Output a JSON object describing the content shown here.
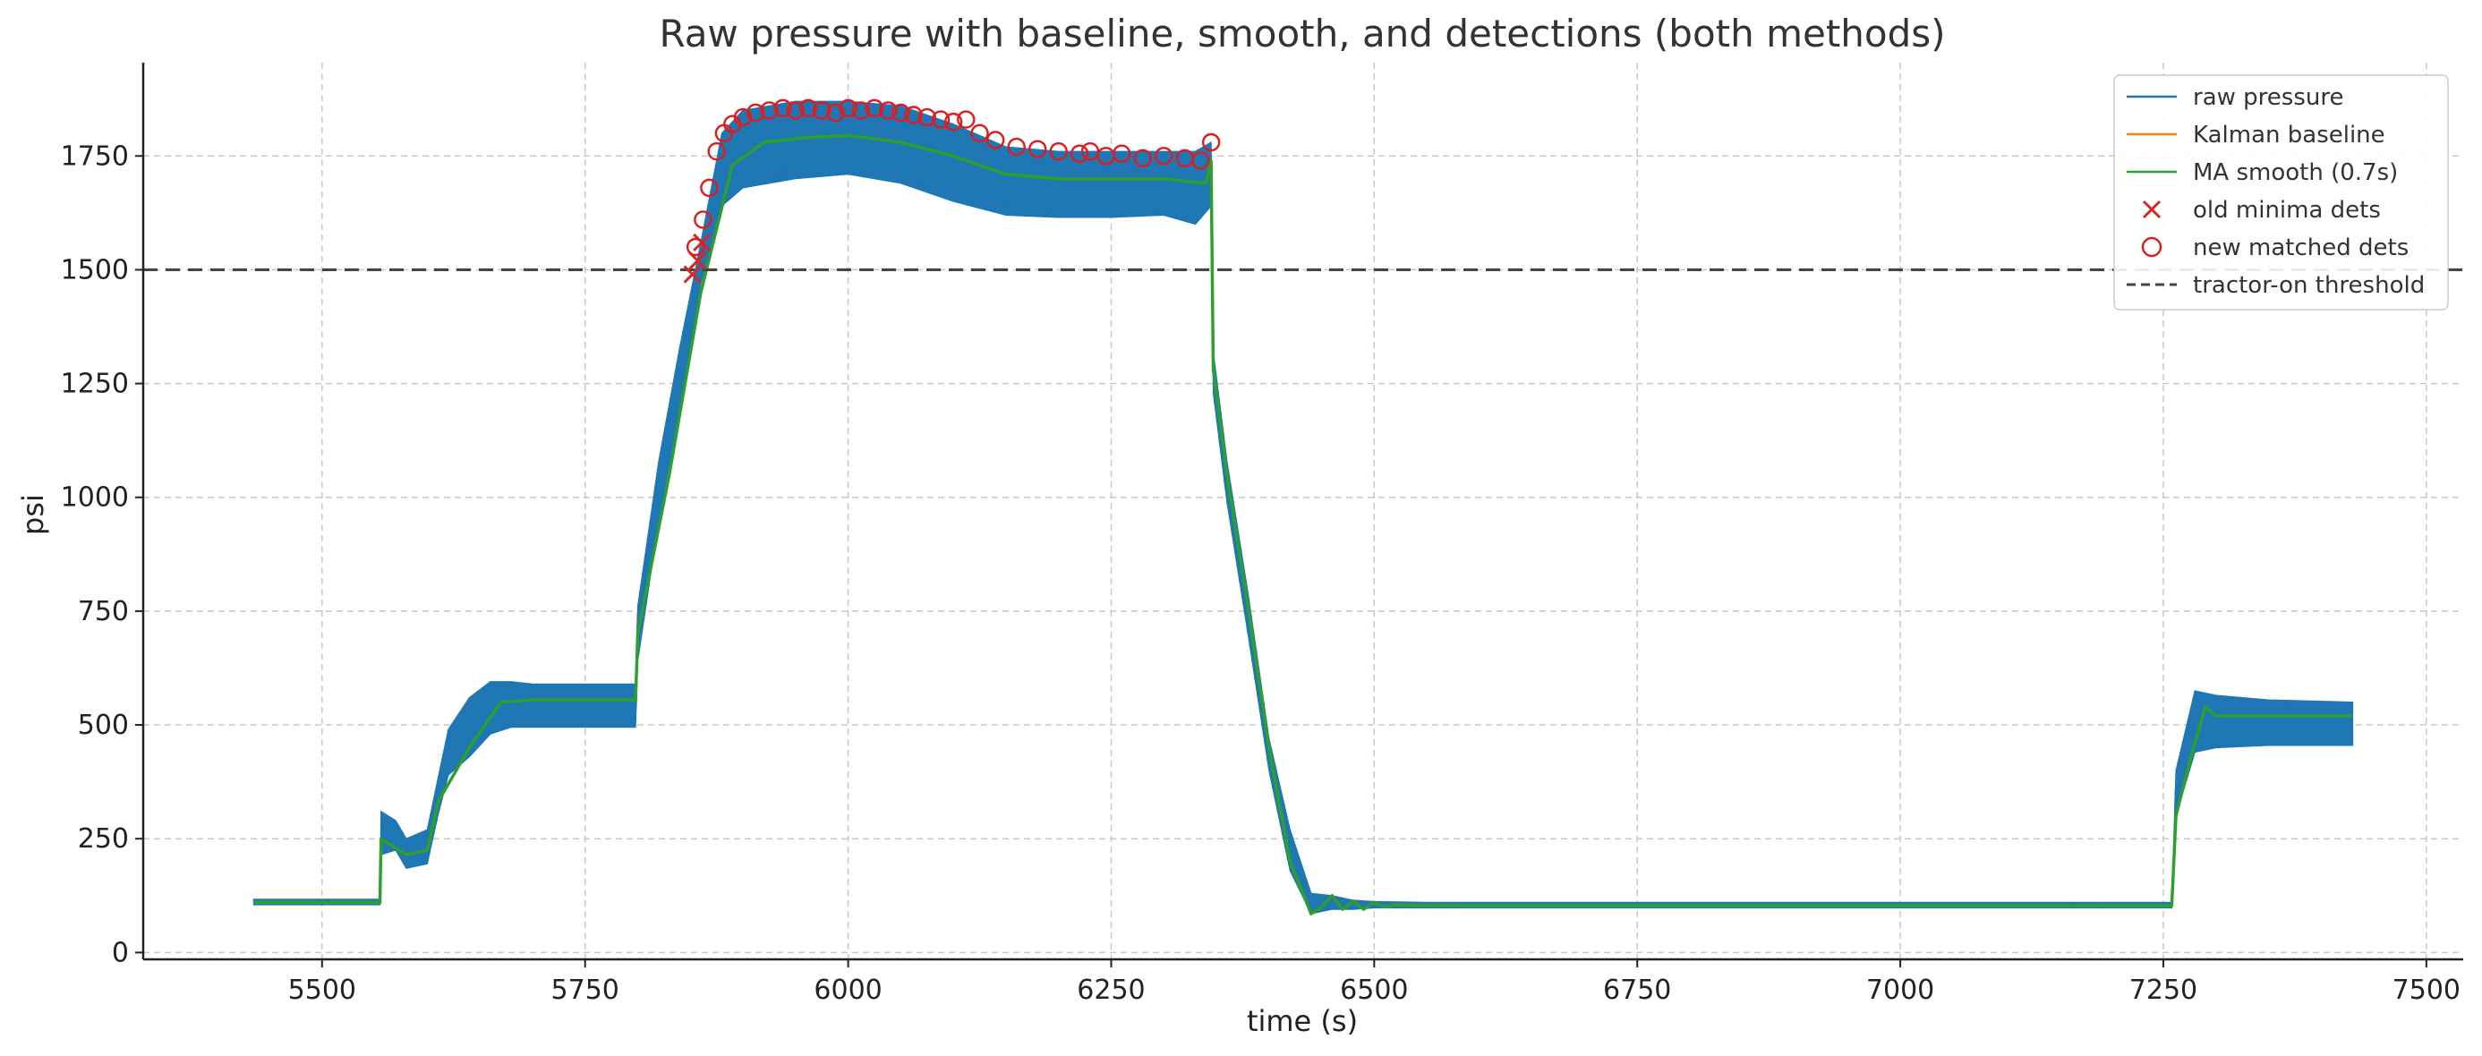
{
  "chart_data": {
    "type": "line",
    "title": "Raw pressure with baseline, smooth, and detections (both methods)",
    "xlabel": "time (s)",
    "ylabel": "psi",
    "xlim": [
      5330,
      7535
    ],
    "ylim": [
      -15,
      1955
    ],
    "x_ticks": [
      5500,
      5750,
      6000,
      6250,
      6500,
      6750,
      7000,
      7250,
      7500
    ],
    "y_ticks": [
      0,
      250,
      500,
      750,
      1000,
      1250,
      1500,
      1750
    ],
    "grid": true,
    "legend_position": "top-right",
    "colors": {
      "raw": "#1f77b4",
      "kalman": "#ff7f0e",
      "ma": "#2ca02c",
      "old_dets": "#d62728",
      "new_dets": "#e31a1c",
      "threshold": "#444444"
    },
    "series": [
      {
        "name": "raw pressure",
        "kind": "band",
        "x": [
          5435,
          5555,
          5556,
          5570,
          5580,
          5600,
          5610,
          5620,
          5640,
          5660,
          5680,
          5700,
          5750,
          5798,
          5800,
          5820,
          5840,
          5860,
          5880,
          5900,
          5950,
          6000,
          6050,
          6100,
          6150,
          6200,
          6250,
          6300,
          6330,
          6345,
          6347,
          6360,
          6380,
          6400,
          6420,
          6440,
          6460,
          6480,
          6500,
          6550,
          6600,
          7000,
          7258,
          7262,
          7280,
          7300,
          7350,
          7430
        ],
        "lower": [
          105,
          105,
          215,
          225,
          185,
          195,
          300,
          390,
          430,
          480,
          495,
          495,
          495,
          495,
          640,
          950,
          1200,
          1470,
          1640,
          1680,
          1700,
          1710,
          1690,
          1650,
          1620,
          1615,
          1615,
          1620,
          1600,
          1640,
          1230,
          990,
          700,
          400,
          180,
          85,
          95,
          95,
          98,
          98,
          98,
          98,
          98,
          300,
          440,
          450,
          455,
          455
        ],
        "upper": [
          117,
          117,
          310,
          290,
          250,
          270,
          380,
          490,
          560,
          595,
          595,
          590,
          590,
          590,
          760,
          1080,
          1330,
          1560,
          1800,
          1850,
          1870,
          1870,
          1860,
          1820,
          1770,
          1760,
          1760,
          1760,
          1760,
          1780,
          1320,
          1080,
          790,
          470,
          270,
          130,
          125,
          115,
          112,
          110,
          110,
          110,
          110,
          400,
          575,
          565,
          555,
          550
        ]
      },
      {
        "name": "Kalman baseline",
        "kind": "line",
        "x": [
          5435,
          5555,
          5556,
          5580,
          5600,
          5610,
          5640,
          5670,
          5700,
          5798,
          5800,
          5830,
          5860,
          5890,
          5920,
          5960,
          6000,
          6050,
          6100,
          6150,
          6200,
          6250,
          6300,
          6340,
          6345,
          6347,
          6360,
          6380,
          6400,
          6420,
          6440,
          6450,
          6460,
          6470,
          6480,
          6490,
          6500,
          6510,
          6520,
          6540,
          6560,
          6580,
          6600,
          7258,
          7262,
          7275,
          7290,
          7300,
          7350,
          7430
        ],
        "y": [
          110,
          110,
          250,
          215,
          225,
          330,
          450,
          550,
          555,
          555,
          700,
          1050,
          1450,
          1730,
          1780,
          1790,
          1795,
          1780,
          1750,
          1710,
          1700,
          1700,
          1700,
          1690,
          1740,
          1280,
          1050,
          760,
          450,
          200,
          85,
          100,
          125,
          95,
          112,
          95,
          110,
          100,
          105,
          103,
          104,
          103,
          103,
          103,
          300,
          420,
          540,
          520,
          520,
          520
        ]
      },
      {
        "name": "MA smooth (0.7s)",
        "kind": "line",
        "x": [
          5435,
          5555,
          5556,
          5580,
          5600,
          5610,
          5640,
          5670,
          5700,
          5798,
          5800,
          5830,
          5860,
          5890,
          5920,
          5960,
          6000,
          6050,
          6100,
          6150,
          6200,
          6250,
          6300,
          6340,
          6345,
          6347,
          6360,
          6380,
          6400,
          6420,
          6440,
          6450,
          6460,
          6470,
          6480,
          6490,
          6500,
          6510,
          6520,
          6540,
          6560,
          6580,
          6600,
          7258,
          7262,
          7275,
          7290,
          7300,
          7350,
          7430
        ],
        "y": [
          110,
          110,
          250,
          215,
          225,
          330,
          450,
          550,
          555,
          555,
          700,
          1050,
          1450,
          1730,
          1780,
          1790,
          1795,
          1780,
          1750,
          1710,
          1700,
          1700,
          1700,
          1690,
          1740,
          1280,
          1050,
          760,
          450,
          200,
          85,
          100,
          125,
          95,
          112,
          95,
          110,
          100,
          105,
          103,
          104,
          103,
          103,
          103,
          300,
          420,
          540,
          520,
          520,
          520
        ]
      },
      {
        "name": "old minima dets",
        "kind": "scatter-x",
        "x": [
          5852,
          5857,
          5861
        ],
        "y": [
          1490,
          1520,
          1560
        ]
      },
      {
        "name": "new matched dets",
        "kind": "scatter-o",
        "x": [
          5855,
          5862,
          5868,
          5875,
          5882,
          5890,
          5900,
          5912,
          5925,
          5938,
          5950,
          5962,
          5975,
          5988,
          6000,
          6012,
          6025,
          6038,
          6050,
          6062,
          6075,
          6088,
          6100,
          6112,
          6125,
          6140,
          6160,
          6180,
          6200,
          6220,
          6230,
          6245,
          6260,
          6280,
          6300,
          6320,
          6335,
          6345
        ],
        "y": [
          1550,
          1610,
          1680,
          1760,
          1800,
          1820,
          1835,
          1845,
          1850,
          1855,
          1850,
          1855,
          1850,
          1845,
          1855,
          1850,
          1855,
          1850,
          1845,
          1840,
          1835,
          1830,
          1825,
          1830,
          1800,
          1785,
          1770,
          1765,
          1760,
          1755,
          1760,
          1750,
          1755,
          1745,
          1750,
          1745,
          1740,
          1780
        ]
      },
      {
        "name": "tractor-on threshold",
        "kind": "hline",
        "y": 1500
      }
    ]
  }
}
